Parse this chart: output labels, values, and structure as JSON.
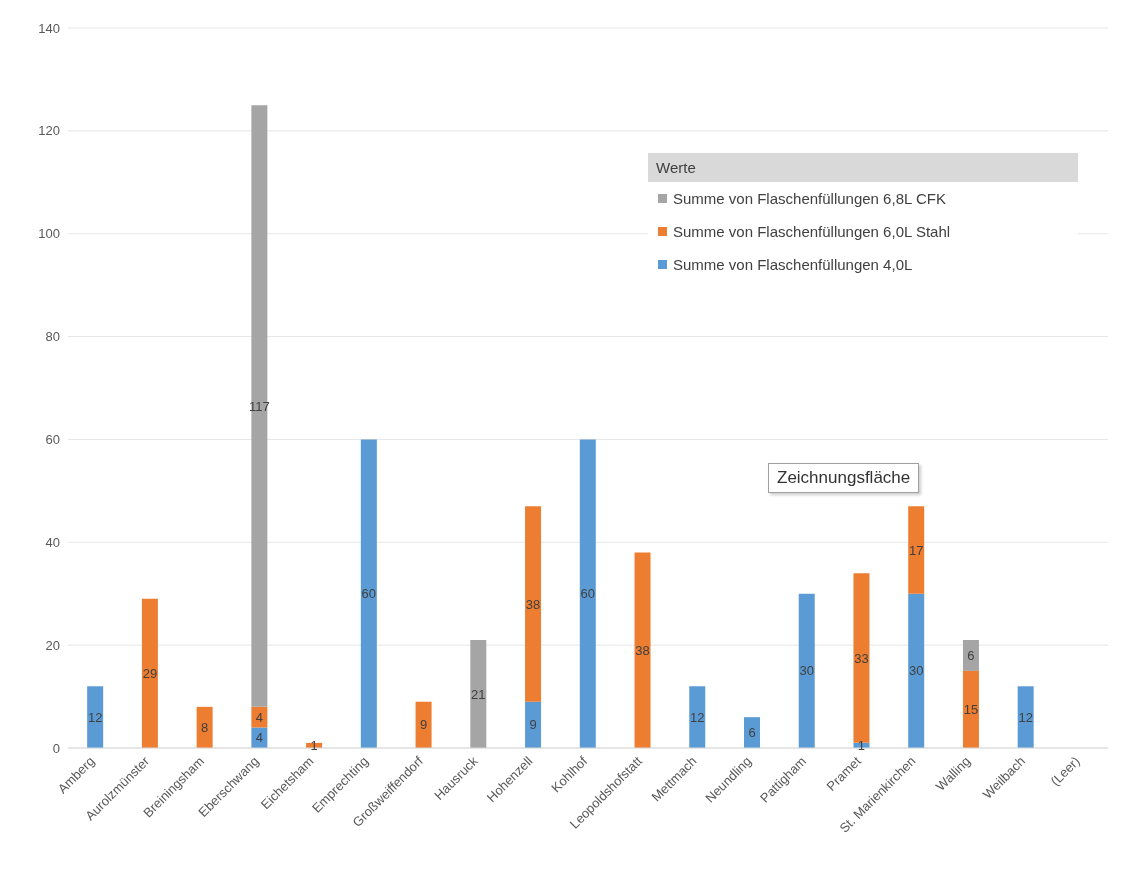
{
  "chart_data": {
    "type": "bar",
    "stacked": true,
    "categories": [
      "Amberg",
      "Aurolzmünster",
      "Breiningsham",
      "Eberschwang",
      "Eichetsham",
      "Emprechting",
      "Großweiffendorf",
      "Hausruck",
      "Hohenzell",
      "Kohlhof",
      "Leopoldshofstatt",
      "Mettmach",
      "Neundling",
      "Pattigham",
      "Pramet",
      "St. Marienkirchen",
      "Walling",
      "Weilbach",
      "(Leer)"
    ],
    "series": [
      {
        "name": "Summe von Flaschenfüllungen 4,0L",
        "color": "#5b9bd5",
        "values": [
          12,
          null,
          null,
          4,
          null,
          60,
          null,
          null,
          9,
          60,
          null,
          12,
          6,
          30,
          1,
          30,
          null,
          12,
          null
        ]
      },
      {
        "name": "Summe von Flaschenfüllungen 6,0L Stahl",
        "color": "#ed7d31",
        "values": [
          null,
          29,
          8,
          4,
          1,
          null,
          9,
          null,
          38,
          null,
          38,
          null,
          null,
          null,
          33,
          17,
          15,
          null,
          null
        ]
      },
      {
        "name": "Summe von Flaschenfüllungen 6,8L CFK",
        "color": "#a5a5a5",
        "values": [
          null,
          null,
          null,
          117,
          null,
          null,
          null,
          21,
          null,
          null,
          null,
          null,
          null,
          null,
          null,
          null,
          6,
          null,
          null
        ]
      }
    ],
    "legend_title": "Werte",
    "legend": "top right",
    "ylim": [
      0,
      140
    ],
    "yticks": [
      0,
      20,
      40,
      60,
      80,
      100,
      120,
      140
    ],
    "grid": "y",
    "data_labels": true,
    "annotations": [
      "Zeichnungsfläche"
    ]
  }
}
